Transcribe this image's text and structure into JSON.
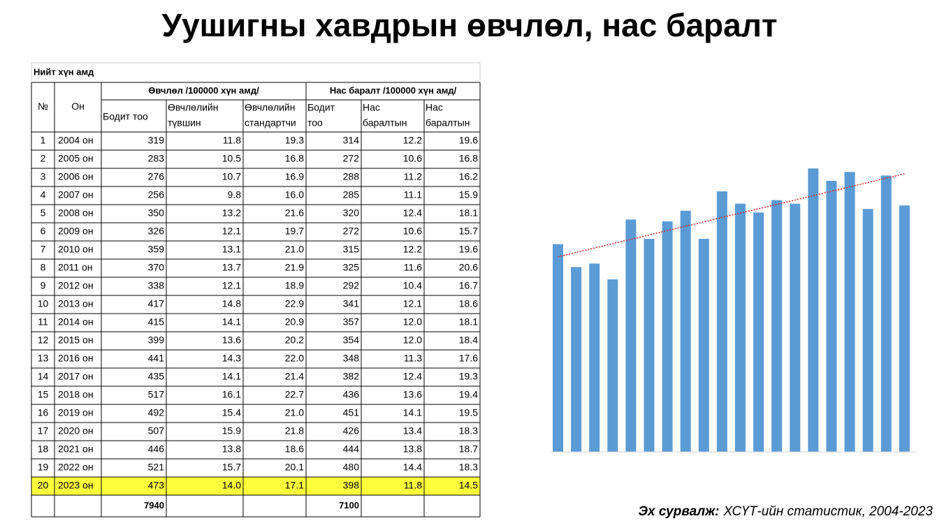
{
  "header": {
    "title": "Уушигны хавдрын өвчлөл, нас баралт"
  },
  "table": {
    "caption": "Нийт хүн амд",
    "col_headers": [
      "№",
      "Он"
    ],
    "groups": [
      "Өвчлөл  /100000 хүн амд/",
      "Нас баралт /100000 хүн амд/"
    ],
    "sub_headers": [
      [
        "Бодит тоо"
      ],
      [
        "Өвчлөлийн",
        "түвшин"
      ],
      [
        "Өвчлөлийн",
        "стандартчи"
      ],
      [
        "Бодит",
        "тоо"
      ],
      [
        "Нас",
        "баралтын"
      ],
      [
        "Нас",
        "баралтын"
      ]
    ],
    "rows": [
      [
        1,
        "2004 он",
        319,
        11.8,
        19.3,
        314,
        12.2,
        19.6
      ],
      [
        2,
        "2005 он",
        283,
        10.5,
        16.8,
        272,
        10.6,
        16.8
      ],
      [
        3,
        "2006 он",
        276,
        10.7,
        16.9,
        288,
        11.2,
        16.2
      ],
      [
        4,
        "2007 он",
        256,
        9.8,
        {
          "value": 16,
          "label": "16.0"
        },
        285,
        11.1,
        15.9
      ],
      [
        5,
        "2008 он",
        350,
        13.2,
        21.6,
        320,
        12.4,
        18.1
      ],
      [
        6,
        "2009 он",
        326,
        12.1,
        19.7,
        272,
        10.6,
        15.7
      ],
      [
        7,
        "2010 он",
        359,
        13.1,
        {
          "value": 21,
          "label": "21.0"
        },
        315,
        12.2,
        19.6
      ],
      [
        8,
        "2011 он",
        370,
        13.7,
        21.9,
        325,
        11.6,
        20.6
      ],
      [
        9,
        "2012 он",
        338,
        12.1,
        18.9,
        292,
        10.4,
        16.7
      ],
      [
        10,
        "2013 он",
        417,
        14.8,
        22.9,
        341,
        12.1,
        18.6
      ],
      [
        11,
        "2014 он",
        415,
        14.1,
        20.9,
        357,
        {
          "value": 12,
          "label": "12.0"
        },
        18.1
      ],
      [
        12,
        "2015 он",
        399,
        13.6,
        20.2,
        354,
        {
          "value": 12,
          "label": "12.0"
        },
        18.4
      ],
      [
        13,
        "2016 он",
        441,
        14.3,
        {
          "value": 22,
          "label": "22.0"
        },
        348,
        11.3,
        17.6
      ],
      [
        14,
        "2017 он",
        435,
        14.1,
        21.4,
        382,
        12.4,
        19.3
      ],
      [
        15,
        "2018 он",
        517,
        16.1,
        22.7,
        436,
        13.6,
        19.4
      ],
      [
        16,
        "2019 он",
        492,
        15.4,
        {
          "value": 21,
          "label": "21.0"
        },
        451,
        14.1,
        19.5
      ],
      [
        17,
        "2020 он",
        507,
        15.9,
        21.8,
        426,
        13.4,
        18.3
      ],
      [
        18,
        "2021 он",
        446,
        13.8,
        18.6,
        444,
        13.8,
        18.7
      ],
      [
        19,
        "2022 он",
        521,
        15.7,
        20.1,
        480,
        14.4,
        18.3
      ],
      [
        20,
        "2023 он",
        473,
        {
          "value": 14,
          "label": "14.0"
        },
        17.1,
        398,
        11.8,
        14.5
      ]
    ],
    "totals": [
      7940,
      7100
    ],
    "highlight_color": "#ffff3c"
  },
  "chart": {
    "type": "bar",
    "color": "#5b9bd5",
    "trend_color": "#e02020"
  },
  "source": {
    "label": "Эх сурвалж:",
    "text": "ХСҮТ-ийн статистик, 2004-2023"
  }
}
